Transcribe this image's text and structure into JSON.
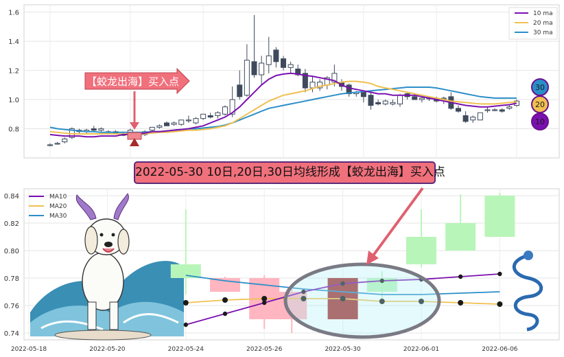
{
  "banner": "2022-05-30 10日,20日,30日均线形成【蛟龙出海】买入点",
  "signal_label": "【蛟龙出海】买入点",
  "badges": [
    "30",
    "20",
    "10"
  ],
  "colors": {
    "up": "#ffffff",
    "down": "#3f4a5c",
    "ma10": "#7a10b0",
    "ma20": "#f0c050",
    "ma30": "#2a8ec8",
    "signal": "#e8707c",
    "zoom_up": "#b8f5b8",
    "zoom_down": "#ffb6c1",
    "zoom_signal": "#a52a2a"
  },
  "chart_data": [
    {
      "type": "candlestick",
      "title": "",
      "ylim": [
        0.6,
        1.65
      ],
      "yticks": [
        "0.8",
        "1.0",
        "1.2",
        "1.4",
        "1.6"
      ],
      "grid": true,
      "legend": {
        "position": "top-right",
        "entries": [
          "10 ma",
          "20 ma",
          "30 ma"
        ]
      },
      "candles": [
        [
          0.69,
          0.7,
          0.68,
          0.69
        ],
        [
          0.7,
          0.71,
          0.69,
          0.7
        ],
        [
          0.71,
          0.74,
          0.7,
          0.73
        ],
        [
          0.74,
          0.81,
          0.73,
          0.8
        ],
        [
          0.78,
          0.8,
          0.77,
          0.79
        ],
        [
          0.78,
          0.8,
          0.77,
          0.79
        ],
        [
          0.8,
          0.82,
          0.78,
          0.79
        ],
        [
          0.79,
          0.81,
          0.78,
          0.8
        ],
        [
          0.78,
          0.79,
          0.76,
          0.78
        ],
        [
          0.78,
          0.79,
          0.76,
          0.77
        ],
        [
          0.76,
          0.78,
          0.75,
          0.76
        ],
        [
          0.77,
          0.8,
          0.76,
          0.79
        ],
        [
          0.76,
          0.78,
          0.75,
          0.76
        ],
        [
          0.76,
          0.79,
          0.75,
          0.78
        ],
        [
          0.79,
          0.81,
          0.78,
          0.81
        ],
        [
          0.81,
          0.83,
          0.8,
          0.82
        ],
        [
          0.84,
          0.85,
          0.82,
          0.82
        ],
        [
          0.83,
          0.85,
          0.82,
          0.84
        ],
        [
          0.83,
          0.86,
          0.82,
          0.86
        ],
        [
          0.86,
          0.89,
          0.84,
          0.86
        ],
        [
          0.84,
          0.88,
          0.83,
          0.87
        ],
        [
          0.87,
          0.9,
          0.86,
          0.9
        ],
        [
          0.89,
          0.91,
          0.87,
          0.88
        ],
        [
          0.89,
          0.92,
          0.87,
          0.91
        ],
        [
          0.9,
          0.96,
          0.89,
          0.95
        ],
        [
          0.9,
          1.09,
          0.88,
          1.0
        ],
        [
          1.1,
          1.2,
          1.0,
          1.02
        ],
        [
          1.03,
          1.38,
          1.02,
          1.27
        ],
        [
          1.26,
          1.58,
          1.15,
          1.17
        ],
        [
          1.17,
          1.3,
          1.1,
          1.25
        ],
        [
          1.24,
          1.43,
          1.18,
          1.3
        ],
        [
          1.34,
          1.36,
          1.22,
          1.26
        ],
        [
          1.28,
          1.3,
          1.2,
          1.22
        ],
        [
          1.22,
          1.26,
          1.18,
          1.24
        ],
        [
          1.21,
          1.24,
          1.16,
          1.17
        ],
        [
          1.18,
          1.21,
          1.05,
          1.08
        ],
        [
          1.08,
          1.16,
          1.05,
          1.12
        ],
        [
          1.08,
          1.14,
          1.06,
          1.12
        ],
        [
          1.1,
          1.16,
          1.07,
          1.15
        ],
        [
          1.12,
          1.24,
          1.09,
          1.18
        ],
        [
          1.12,
          1.14,
          1.06,
          1.09
        ],
        [
          1.1,
          1.11,
          1.02,
          1.04
        ],
        [
          1.04,
          1.06,
          1.02,
          1.05
        ],
        [
          1.05,
          1.06,
          0.98,
          1.02
        ],
        [
          1.03,
          1.05,
          0.93,
          0.96
        ],
        [
          0.98,
          1.0,
          0.96,
          0.97
        ],
        [
          0.97,
          1.0,
          0.96,
          0.99
        ],
        [
          0.97,
          1.0,
          0.96,
          0.98
        ],
        [
          0.97,
          1.04,
          0.95,
          1.03
        ],
        [
          1.04,
          1.05,
          1.0,
          1.02
        ],
        [
          1.02,
          1.04,
          1.0,
          1.0
        ],
        [
          1.0,
          1.02,
          0.98,
          1.01
        ],
        [
          1.01,
          1.02,
          0.99,
          1.01
        ],
        [
          1.01,
          1.02,
          0.98,
          0.99
        ],
        [
          1.01,
          1.02,
          0.97,
          1.01
        ],
        [
          1.02,
          1.05,
          0.93,
          0.94
        ],
        [
          0.94,
          0.96,
          0.91,
          0.92
        ],
        [
          0.89,
          0.92,
          0.84,
          0.85
        ],
        [
          0.86,
          0.89,
          0.84,
          0.88
        ],
        [
          0.86,
          0.91,
          0.86,
          0.91
        ],
        [
          0.93,
          0.95,
          0.91,
          0.93
        ],
        [
          0.93,
          0.94,
          0.92,
          0.93
        ],
        [
          0.93,
          0.94,
          0.91,
          0.92
        ],
        [
          0.94,
          0.96,
          0.93,
          0.95
        ],
        [
          0.96,
          1.0,
          0.95,
          0.99
        ]
      ],
      "ma10": [
        0.76,
        0.755,
        0.75,
        0.75,
        0.75,
        0.745,
        0.745,
        0.75,
        0.75,
        0.75,
        0.76,
        0.76,
        0.765,
        0.77,
        0.78,
        0.78,
        0.785,
        0.79,
        0.795,
        0.8,
        0.81,
        0.82,
        0.84,
        0.86,
        0.88,
        0.91,
        0.95,
        1.0,
        1.05,
        1.1,
        1.14,
        1.165,
        1.175,
        1.18,
        1.175,
        1.165,
        1.16,
        1.15,
        1.14,
        1.13,
        1.1,
        1.08,
        1.07,
        1.06,
        1.05,
        1.04,
        1.04,
        1.03,
        1.03,
        1.03,
        1.03,
        1.02,
        1.01,
        1.0,
        0.99,
        0.98,
        0.97,
        0.96,
        0.955,
        0.95,
        0.95,
        0.955,
        0.96,
        0.965,
        0.975
      ],
      "ma20": [
        0.78,
        0.775,
        0.77,
        0.765,
        0.765,
        0.765,
        0.765,
        0.765,
        0.765,
        0.765,
        0.765,
        0.765,
        0.765,
        0.765,
        0.77,
        0.775,
        0.775,
        0.78,
        0.785,
        0.79,
        0.79,
        0.795,
        0.8,
        0.81,
        0.82,
        0.84,
        0.87,
        0.9,
        0.93,
        0.96,
        0.99,
        1.01,
        1.03,
        1.04,
        1.05,
        1.06,
        1.075,
        1.09,
        1.1,
        1.11,
        1.12,
        1.125,
        1.125,
        1.12,
        1.11,
        1.09,
        1.08,
        1.07,
        1.06,
        1.05,
        1.04,
        1.03,
        1.02,
        1.01,
        1.0,
        0.99,
        0.985,
        0.98,
        0.975,
        0.97,
        0.97,
        0.97,
        0.975,
        0.98,
        0.985
      ],
      "ma30": [
        0.81,
        0.8,
        0.795,
        0.79,
        0.785,
        0.78,
        0.78,
        0.775,
        0.775,
        0.775,
        0.775,
        0.775,
        0.775,
        0.775,
        0.78,
        0.78,
        0.785,
        0.79,
        0.795,
        0.8,
        0.8,
        0.805,
        0.81,
        0.815,
        0.825,
        0.84,
        0.86,
        0.88,
        0.9,
        0.92,
        0.94,
        0.95,
        0.96,
        0.97,
        0.98,
        0.99,
        1.0,
        1.01,
        1.02,
        1.03,
        1.04,
        1.045,
        1.05,
        1.055,
        1.06,
        1.065,
        1.07,
        1.075,
        1.08,
        1.085,
        1.085,
        1.085,
        1.085,
        1.08,
        1.07,
        1.06,
        1.05,
        1.04,
        1.03,
        1.02,
        1.015,
        1.01,
        1.01,
        1.01,
        1.01
      ]
    },
    {
      "type": "candlestick",
      "title": "",
      "ylim": [
        0.735,
        0.845
      ],
      "yticks": [
        "0.74",
        "0.76",
        "0.78",
        "0.80",
        "0.82",
        "0.84"
      ],
      "x_ticks": [
        "2022-05-18",
        "2022-05-20",
        "2022-05-24",
        "2022-05-26",
        "2022-05-30",
        "2022-06-01",
        "2022-06-06"
      ],
      "grid": true,
      "legend": {
        "position": "top-left",
        "entries": [
          "MA10",
          "MA20",
          "MA30"
        ]
      },
      "candles": [
        {
          "x": 4.0,
          "open": 0.78,
          "high": 0.83,
          "low": 0.768,
          "close": 0.79
        },
        {
          "x": 5.0,
          "open": 0.78,
          "high": 0.781,
          "low": 0.77,
          "close": 0.77
        },
        {
          "x": 6.0,
          "open": 0.78,
          "high": 0.782,
          "low": 0.743,
          "close": 0.75
        },
        {
          "x": 6.7,
          "open": 0.77,
          "high": 0.772,
          "low": 0.74,
          "close": 0.75
        },
        {
          "x": 8.0,
          "open": 0.75,
          "high": 0.78,
          "low": 0.75,
          "close": 0.78
        },
        {
          "x": 9.0,
          "open": 0.77,
          "high": 0.785,
          "low": 0.763,
          "close": 0.78
        },
        {
          "x": 10.0,
          "open": 0.79,
          "high": 0.83,
          "low": 0.788,
          "close": 0.81
        },
        {
          "x": 11.0,
          "open": 0.8,
          "high": 0.841,
          "low": 0.8,
          "close": 0.82
        },
        {
          "x": 12.0,
          "open": 0.81,
          "high": 0.842,
          "low": 0.81,
          "close": 0.84
        }
      ],
      "ma10": [
        {
          "x": 4,
          "y": 0.746
        },
        {
          "x": 5,
          "y": 0.754
        },
        {
          "x": 6,
          "y": 0.762
        },
        {
          "x": 7,
          "y": 0.77
        },
        {
          "x": 8,
          "y": 0.776
        },
        {
          "x": 9,
          "y": 0.778
        },
        {
          "x": 10,
          "y": 0.779
        },
        {
          "x": 11,
          "y": 0.781
        },
        {
          "x": 12,
          "y": 0.783
        }
      ],
      "ma20": [
        {
          "x": 4,
          "y": 0.762
        },
        {
          "x": 5,
          "y": 0.764
        },
        {
          "x": 6,
          "y": 0.765
        },
        {
          "x": 7,
          "y": 0.765
        },
        {
          "x": 8,
          "y": 0.765
        },
        {
          "x": 9,
          "y": 0.763
        },
        {
          "x": 10,
          "y": 0.763
        },
        {
          "x": 11,
          "y": 0.762
        },
        {
          "x": 12,
          "y": 0.761
        }
      ],
      "ma30": [
        {
          "x": 4,
          "y": 0.782
        },
        {
          "x": 5,
          "y": 0.778
        },
        {
          "x": 6,
          "y": 0.775
        },
        {
          "x": 7,
          "y": 0.772
        },
        {
          "x": 8,
          "y": 0.77
        },
        {
          "x": 9,
          "y": 0.768
        },
        {
          "x": 10,
          "y": 0.768
        },
        {
          "x": 11,
          "y": 0.769
        },
        {
          "x": 12,
          "y": 0.77
        }
      ]
    }
  ]
}
